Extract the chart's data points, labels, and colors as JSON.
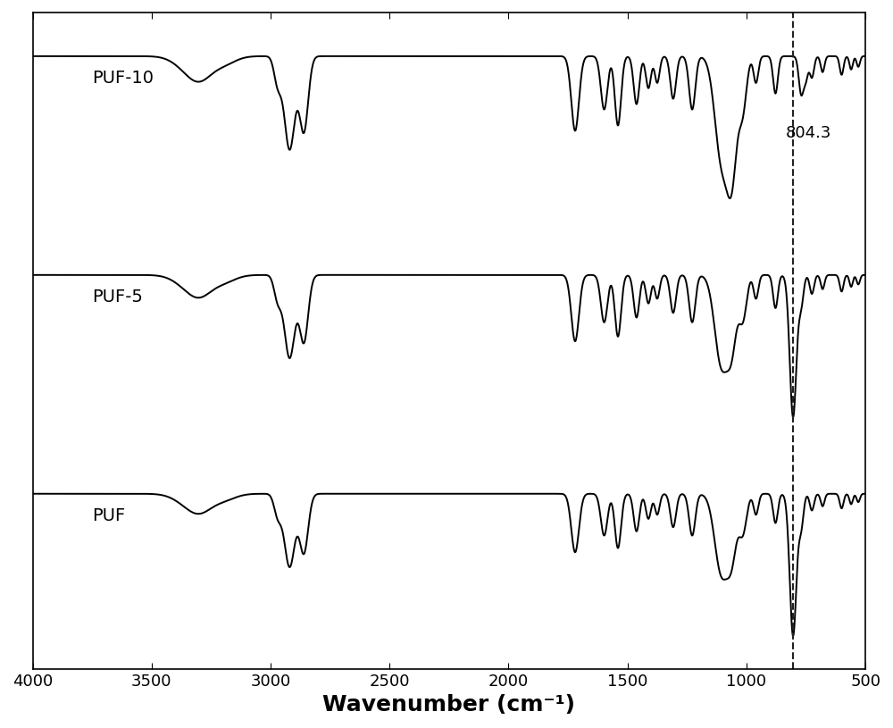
{
  "xlabel": "Wavenumber (cm⁻¹)",
  "xlabel_fontsize": 18,
  "xlim": [
    4000,
    500
  ],
  "dashed_line_x": 804.3,
  "dashed_line_label": "804.3",
  "spectra_labels": [
    "PUF-10",
    "PUF-5",
    "PUF"
  ],
  "label_fontsize": 14,
  "xticks": [
    4000,
    3500,
    3000,
    2500,
    2000,
    1500,
    1000,
    500
  ],
  "line_color": "#000000",
  "background_color": "#ffffff",
  "offsets": [
    2.0,
    1.0,
    0.0
  ],
  "dashed_color": "#222222",
  "linewidth": 1.4
}
